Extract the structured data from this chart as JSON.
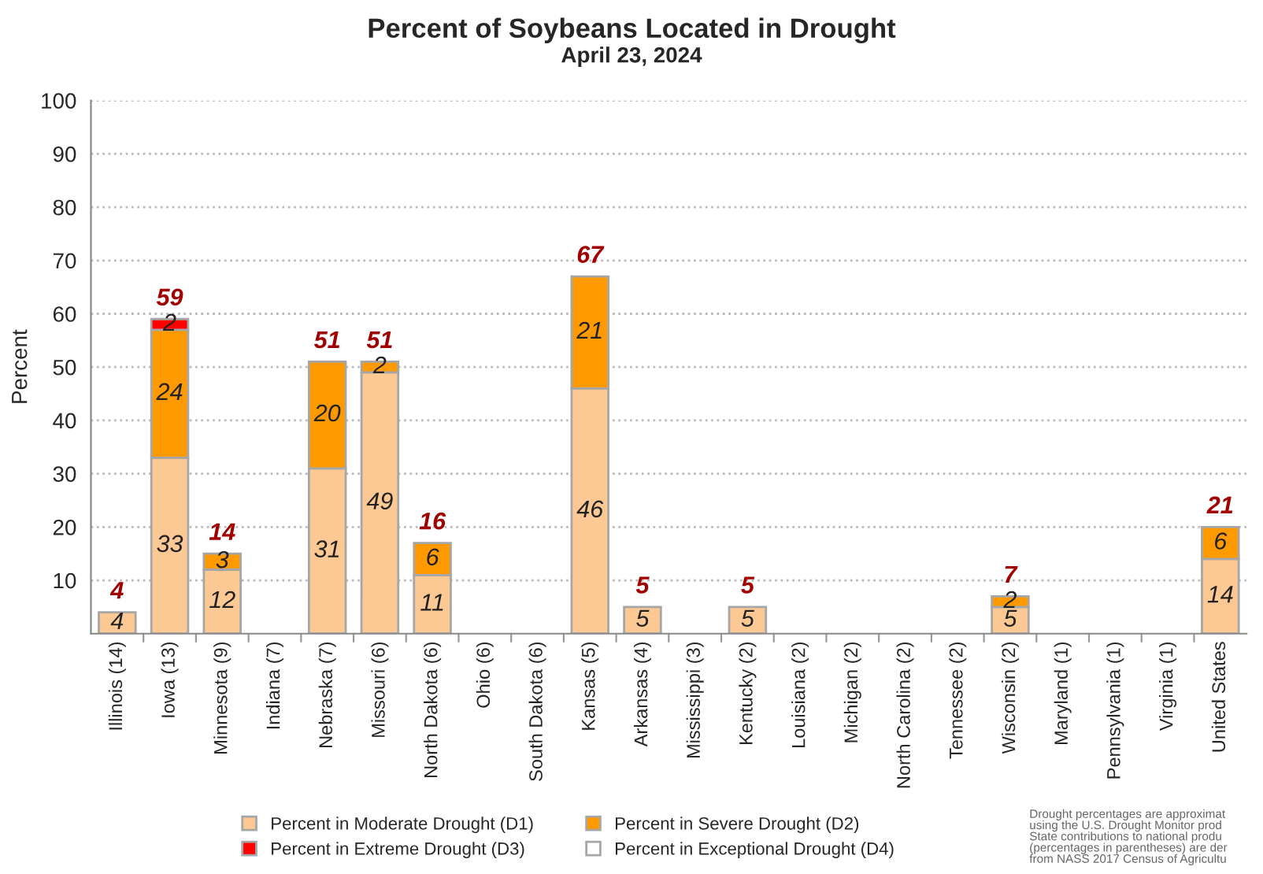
{
  "chart_data": {
    "type": "bar",
    "title": "Percent of Soybeans Located in Drought",
    "subtitle": "April 23, 2024",
    "ylabel": "Percent",
    "categories": [
      "Illinois (14)",
      "Iowa (13)",
      "Minnesota (9)",
      "Indiana (7)",
      "Nebraska (7)",
      "Missouri (6)",
      "North Dakota (6)",
      "Ohio (6)",
      "South Dakota (6)",
      "Kansas (5)",
      "Arkansas (4)",
      "Mississippi (3)",
      "Kentucky (2)",
      "Louisiana (2)",
      "Michigan (2)",
      "North Carolina (2)",
      "Tennessee (2)",
      "Wisconsin (2)",
      "Maryland (1)",
      "Pennsylvania (1)",
      "Virginia (1)",
      "United States"
    ],
    "series": [
      {
        "name": "Percent in Moderate Drought (D1)",
        "color": "#fcc995",
        "values": [
          4,
          33,
          12,
          null,
          31,
          49,
          11,
          null,
          null,
          46,
          5,
          null,
          5,
          null,
          null,
          null,
          null,
          5,
          null,
          null,
          null,
          14
        ]
      },
      {
        "name": "Percent in Severe Drought (D2)",
        "color": "#ff9900",
        "values": [
          null,
          24,
          3,
          null,
          20,
          2,
          6,
          null,
          null,
          21,
          null,
          null,
          null,
          null,
          null,
          null,
          null,
          2,
          null,
          null,
          null,
          6
        ]
      },
      {
        "name": "Percent in Extreme Drought (D3)",
        "color": "#ff0000",
        "values": [
          null,
          2,
          null,
          null,
          null,
          null,
          null,
          null,
          null,
          null,
          null,
          null,
          null,
          null,
          null,
          null,
          null,
          null,
          null,
          null,
          null,
          null
        ]
      },
      {
        "name": "Percent in Exceptional Drought (D4)",
        "color": "#ffffff",
        "values": [
          null,
          null,
          null,
          null,
          null,
          null,
          null,
          null,
          null,
          null,
          null,
          null,
          null,
          null,
          null,
          null,
          null,
          null,
          null,
          null,
          null,
          null
        ]
      }
    ],
    "stacked": true,
    "data_labels": true,
    "totals": [
      "4",
      "59",
      "14",
      null,
      "51",
      "51",
      "16",
      null,
      null,
      "67",
      "5",
      null,
      "5",
      null,
      null,
      null,
      null,
      "7",
      null,
      null,
      null,
      "21"
    ],
    "ylim": [
      0,
      100
    ],
    "yticks": [
      10,
      20,
      30,
      40,
      50,
      60,
      70,
      80,
      90,
      100
    ],
    "grid": "y",
    "legend": "bottom",
    "annotations": [
      "Drought percentages are approximat\nusing the U.S. Drought Monitor prod\nState contributions to national produ\n(percentages in parentheses) are der\nfrom NASS 2017 Census of Agricultu"
    ]
  }
}
